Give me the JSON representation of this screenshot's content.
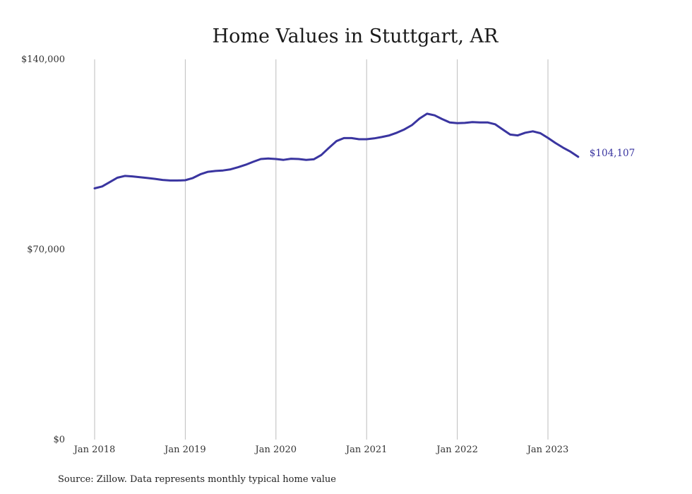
{
  "title": "Home Values in Stuttgart, AR",
  "source": "Source: Zillow. Data represents monthly typical home value",
  "end_label": "$104,107",
  "colors": {
    "line": "#3a35a0",
    "grid": "#bdbdbd"
  },
  "chart_data": {
    "type": "line",
    "title": "Home Values in Stuttgart, AR",
    "xlabel": "",
    "ylabel": "",
    "ylim": [
      0,
      140000
    ],
    "yticks": [
      0,
      70000,
      140000
    ],
    "ytick_labels": [
      "$0",
      "$70,000",
      "$140,000"
    ],
    "xticks": [
      0,
      12,
      24,
      36,
      48,
      60
    ],
    "xtick_labels": [
      "Jan 2018",
      "Jan 2019",
      "Jan 2020",
      "Jan 2021",
      "Jan 2022",
      "Jan 2023"
    ],
    "grid": "vertical",
    "series": [
      {
        "color": "#3a35a0",
        "x_start": "2018-01",
        "frequency": "monthly",
        "values": [
          92500,
          93200,
          94800,
          96400,
          97100,
          96900,
          96600,
          96300,
          96000,
          95600,
          95400,
          95400,
          95500,
          96300,
          97700,
          98600,
          98900,
          99100,
          99500,
          100300,
          101200,
          102300,
          103300,
          103500,
          103300,
          103000,
          103400,
          103300,
          103000,
          103200,
          104800,
          107400,
          109900,
          111000,
          111000,
          110600,
          110600,
          110900,
          111400,
          112000,
          113000,
          114200,
          115800,
          118200,
          120000,
          119400,
          118000,
          116800,
          116500,
          116600,
          116900,
          116800,
          116800,
          116100,
          114200,
          112300,
          112000,
          113000,
          113500,
          112800,
          111100,
          109200,
          107500,
          106000,
          104107
        ]
      }
    ]
  }
}
